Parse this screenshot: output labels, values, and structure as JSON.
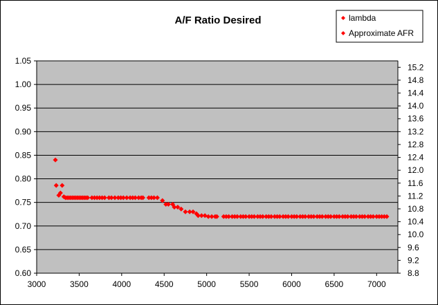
{
  "chart_data": {
    "type": "scatter",
    "title": "A/F Ratio Desired",
    "xlabel": "",
    "ylabel": "",
    "y2label": "",
    "xlim": [
      3000,
      7250
    ],
    "ylim": [
      0.6,
      1.05
    ],
    "y2lim": [
      8.8,
      15.4
    ],
    "x_ticks": [
      "3000",
      "3500",
      "4000",
      "4500",
      "5000",
      "5500",
      "6000",
      "6500",
      "7000"
    ],
    "y_ticks": [
      "0.60",
      "0.65",
      "0.70",
      "0.75",
      "0.80",
      "0.85",
      "0.90",
      "0.95",
      "1.00",
      "1.05"
    ],
    "y2_ticks": [
      "8.8",
      "9.2",
      "9.6",
      "10.0",
      "10.4",
      "10.8",
      "11.2",
      "11.6",
      "12.0",
      "12.4",
      "12.8",
      "13.2",
      "13.6",
      "14.0",
      "14.4",
      "14.8",
      "15.2"
    ],
    "plot_background": "#c0c0c0",
    "grid": "horizontal major gridlines",
    "legend_position": "top-right",
    "marker": "diamond",
    "series": [
      {
        "name": "lambda",
        "color": "#ff0000",
        "x": [
          3220,
          3230,
          3260,
          3280,
          3300,
          3320,
          3340,
          3360,
          3380,
          3400,
          3420,
          3440,
          3460,
          3480,
          3500,
          3520,
          3540,
          3560,
          3580,
          3600,
          3650,
          3680,
          3710,
          3740,
          3770,
          3800,
          3850,
          3880,
          3920,
          3960,
          3990,
          4020,
          4060,
          4100,
          4130,
          4160,
          4200,
          4230,
          4250,
          4320,
          4350,
          4380,
          4420,
          4480,
          4520,
          4550,
          4600,
          4620,
          4660,
          4700,
          4750,
          4800,
          4840,
          4880,
          4900,
          4940,
          4980,
          5020,
          5060,
          5100,
          5120,
          5200,
          5230,
          5260,
          5300,
          5330,
          5360,
          5400,
          5430,
          5460,
          5500,
          5530,
          5560,
          5600,
          5630,
          5660,
          5700,
          5730,
          5760,
          5800,
          5830,
          5860,
          5900,
          5930,
          5960,
          6000,
          6030,
          6060,
          6100,
          6130,
          6160,
          6200,
          6230,
          6260,
          6300,
          6330,
          6360,
          6400,
          6430,
          6460,
          6500,
          6530,
          6560,
          6600,
          6630,
          6660,
          6700,
          6730,
          6760,
          6800,
          6830,
          6860,
          6900,
          6930,
          6960,
          7000,
          7030,
          7060,
          7090,
          7120
        ],
        "y": [
          0.84,
          0.786,
          0.765,
          0.77,
          0.786,
          0.762,
          0.76,
          0.76,
          0.76,
          0.76,
          0.76,
          0.76,
          0.76,
          0.76,
          0.76,
          0.76,
          0.76,
          0.76,
          0.76,
          0.76,
          0.76,
          0.76,
          0.76,
          0.76,
          0.76,
          0.76,
          0.76,
          0.76,
          0.76,
          0.76,
          0.76,
          0.76,
          0.76,
          0.76,
          0.76,
          0.76,
          0.76,
          0.76,
          0.76,
          0.76,
          0.76,
          0.76,
          0.76,
          0.754,
          0.746,
          0.746,
          0.746,
          0.74,
          0.74,
          0.736,
          0.73,
          0.73,
          0.73,
          0.726,
          0.722,
          0.722,
          0.722,
          0.72,
          0.72,
          0.72,
          0.72,
          0.72,
          0.72,
          0.72,
          0.72,
          0.72,
          0.72,
          0.72,
          0.72,
          0.72,
          0.72,
          0.72,
          0.72,
          0.72,
          0.72,
          0.72,
          0.72,
          0.72,
          0.72,
          0.72,
          0.72,
          0.72,
          0.72,
          0.72,
          0.72,
          0.72,
          0.72,
          0.72,
          0.72,
          0.72,
          0.72,
          0.72,
          0.72,
          0.72,
          0.72,
          0.72,
          0.72,
          0.72,
          0.72,
          0.72,
          0.72,
          0.72,
          0.72,
          0.72,
          0.72,
          0.72,
          0.72,
          0.72,
          0.72,
          0.72,
          0.72,
          0.72,
          0.72,
          0.72,
          0.72,
          0.72,
          0.72,
          0.72,
          0.72,
          0.72
        ]
      },
      {
        "name": "Approximate AFR",
        "color": "#ff0000",
        "x": [],
        "y": []
      }
    ]
  }
}
